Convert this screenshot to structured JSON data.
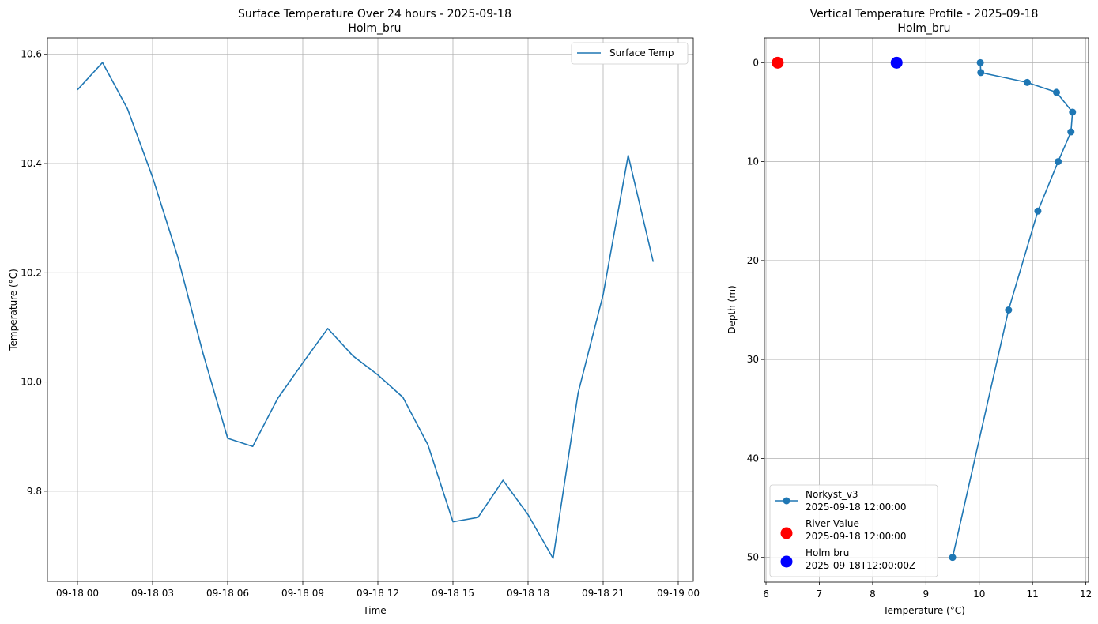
{
  "chart_data": [
    {
      "type": "line",
      "title": "Surface Temperature Over 24 hours - 2025-09-18",
      "subtitle": "Holm_bru",
      "xlabel": "Time",
      "ylabel": "Temperature (°C)",
      "x_ticks": [
        "09-18 00",
        "09-18 03",
        "09-18 06",
        "09-18 09",
        "09-18 12",
        "09-18 15",
        "09-18 18",
        "09-18 21",
        "09-19 00"
      ],
      "y_ticks": [
        "9.8",
        "10.0",
        "10.2",
        "10.4",
        "10.6"
      ],
      "x_hours": [
        0,
        1,
        2,
        3,
        4,
        5,
        6,
        7,
        8,
        9,
        10,
        11,
        12,
        13,
        14,
        15,
        16,
        17,
        18,
        19,
        20,
        21,
        22,
        23
      ],
      "series": [
        {
          "name": "Surface Temp",
          "color": "#1f77b4",
          "values": [
            10.535,
            10.585,
            10.5,
            10.375,
            10.23,
            10.055,
            9.897,
            9.882,
            9.97,
            10.035,
            10.098,
            10.048,
            10.013,
            9.972,
            9.885,
            9.744,
            9.752,
            9.82,
            9.757,
            9.677,
            9.98,
            10.16,
            10.415,
            10.22
          ]
        }
      ],
      "xlim_hours": [
        -1.2,
        24.6
      ],
      "ylim": [
        9.635,
        10.63
      ],
      "grid": true,
      "legend": "top-right"
    },
    {
      "type": "line",
      "title": "Vertical Temperature Profile - 2025-09-18",
      "subtitle": "Holm_bru",
      "xlabel": "Temperature (°C)",
      "ylabel": "Depth (m)",
      "x_ticks": [
        "6",
        "7",
        "8",
        "9",
        "10",
        "11",
        "12"
      ],
      "y_ticks": [
        "0",
        "10",
        "20",
        "30",
        "40",
        "50"
      ],
      "xlim": [
        5.97,
        12.05
      ],
      "ylim": [
        52.5,
        -2.5
      ],
      "y_inverted": true,
      "grid": true,
      "legend": "bottom-left",
      "series": [
        {
          "name": "Norkyst_v3",
          "name_line2": "2025-09-18 12:00:00",
          "color": "#1f77b4",
          "marker": "circle",
          "temperature": [
            10.02,
            10.03,
            10.9,
            11.45,
            11.75,
            11.72,
            11.48,
            11.1,
            10.55,
            9.5
          ],
          "depth": [
            0,
            1,
            2,
            3,
            5,
            7,
            10,
            15,
            25,
            50
          ]
        },
        {
          "name": "River Value",
          "name_line2": "2025-09-18 12:00:00",
          "color": "#ff0000",
          "marker": "large-circle",
          "temperature": [
            6.22
          ],
          "depth": [
            0
          ]
        },
        {
          "name": "Holm bru",
          "name_line2": "2025-09-18T12:00:00Z",
          "color": "#0000ff",
          "marker": "large-circle",
          "temperature": [
            8.45
          ],
          "depth": [
            0
          ]
        }
      ]
    }
  ]
}
